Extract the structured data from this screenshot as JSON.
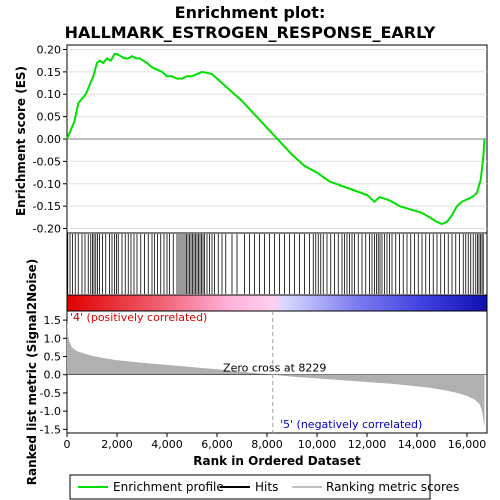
{
  "chart_data": {
    "type": "line",
    "title_line1": "Enrichment plot:",
    "title_line2": "HALLMARK_ESTROGEN_RESPONSE_EARLY",
    "es_panel": {
      "ylabel": "Enrichment score (ES)",
      "ylim": [
        -0.21,
        0.21
      ],
      "yticks": [
        "0.20",
        "0.15",
        "0.10",
        "0.05",
        "0.00",
        "-0.05",
        "-0.10",
        "-0.15",
        "-0.20"
      ],
      "ytick_values": [
        0.2,
        0.15,
        0.1,
        0.05,
        0.0,
        -0.05,
        -0.1,
        -0.15,
        -0.2
      ],
      "series_name": "Enrichment profile",
      "color": "#00e000",
      "x": [
        0,
        150,
        300,
        450,
        600,
        750,
        900,
        1050,
        1200,
        1300,
        1450,
        1600,
        1750,
        1900,
        2000,
        2150,
        2300,
        2450,
        2600,
        2750,
        2900,
        3050,
        3200,
        3400,
        3600,
        3800,
        4000,
        4200,
        4400,
        4600,
        4800,
        5000,
        5200,
        5400,
        5600,
        5800,
        6000,
        6500,
        7000,
        7500,
        8000,
        8500,
        9000,
        9500,
        10000,
        10500,
        11000,
        11500,
        12000,
        12300,
        12500,
        12800,
        13000,
        13300,
        13600,
        13900,
        14200,
        14500,
        14800,
        15000,
        15200,
        15400,
        15600,
        15800,
        16000,
        16200,
        16400,
        16550,
        16650,
        16700
      ],
      "y": [
        0.0,
        0.02,
        0.04,
        0.08,
        0.09,
        0.1,
        0.12,
        0.14,
        0.17,
        0.175,
        0.17,
        0.18,
        0.175,
        0.19,
        0.19,
        0.185,
        0.18,
        0.18,
        0.185,
        0.18,
        0.18,
        0.175,
        0.17,
        0.16,
        0.155,
        0.15,
        0.14,
        0.14,
        0.135,
        0.135,
        0.14,
        0.14,
        0.145,
        0.15,
        0.148,
        0.145,
        0.135,
        0.11,
        0.085,
        0.055,
        0.025,
        -0.005,
        -0.035,
        -0.06,
        -0.075,
        -0.095,
        -0.105,
        -0.115,
        -0.125,
        -0.14,
        -0.13,
        -0.135,
        -0.14,
        -0.15,
        -0.155,
        -0.16,
        -0.165,
        -0.175,
        -0.185,
        -0.19,
        -0.185,
        -0.17,
        -0.15,
        -0.14,
        -0.135,
        -0.13,
        -0.12,
        -0.09,
        -0.04,
        0.0
      ]
    },
    "hits_panel": {
      "legend_name": "Hits",
      "hit_positions": [
        30,
        120,
        220,
        330,
        450,
        600,
        720,
        850,
        950,
        1020,
        1080,
        1150,
        1220,
        1300,
        1420,
        1550,
        1700,
        1800,
        1900,
        1980,
        2050,
        2200,
        2330,
        2450,
        2560,
        2680,
        2800,
        2950,
        3100,
        3250,
        3400,
        3500,
        3620,
        3750,
        3880,
        4000,
        4100,
        4250,
        4400,
        4480,
        4560,
        4640,
        4720,
        4780,
        4840,
        4900,
        4960,
        5020,
        5080,
        5140,
        5200,
        5260,
        5320,
        5380,
        5440,
        5500,
        5600,
        5700,
        5800,
        5900,
        6050,
        6200,
        6350,
        6600,
        6800,
        7100,
        7300,
        7500,
        7700,
        7900,
        8100,
        8300,
        8500,
        8700,
        8900,
        9100,
        9300,
        9500,
        9700,
        9850,
        9950,
        10050,
        10150,
        10250,
        10400,
        10550,
        10700,
        10850,
        11000,
        11100,
        11200,
        11300,
        11400,
        11500,
        11650,
        11800,
        11950,
        12100,
        12200,
        12300,
        12380,
        12450,
        12520,
        12600,
        12700,
        12800,
        12900,
        13000,
        13150,
        13300,
        13450,
        13600,
        13750,
        13900,
        14050,
        14200,
        14350,
        14500,
        14650,
        14800,
        14950,
        15100,
        15250,
        15400,
        15550,
        15700,
        15850,
        15950,
        16050,
        16150,
        16250,
        16350,
        16420,
        16480,
        16540,
        16600,
        16650
      ]
    },
    "metric_panel": {
      "ylabel": "Ranked list metric (Signal2Noise)",
      "ylim": [
        -1.6,
        1.75
      ],
      "yticks": [
        "1.5",
        "1.0",
        "0.5",
        "0.0",
        "-0.5",
        "-1.0",
        "-1.5"
      ],
      "ytick_values": [
        1.5,
        1.0,
        0.5,
        0.0,
        -0.5,
        -1.0,
        -1.5
      ],
      "legend_name": "Ranking metric scores",
      "zero_cross_label": "Zero cross at 8229",
      "zero_cross_x": 8229,
      "pos_label": "'4' (positively correlated)",
      "neg_label": "'5' (negatively correlated)",
      "pos_color": "#e00000",
      "neg_color": "#0000c0",
      "x": [
        0,
        50,
        100,
        200,
        400,
        700,
        1000,
        1500,
        2000,
        3000,
        4000,
        5000,
        6000,
        7000,
        8229,
        9000,
        10000,
        11000,
        12000,
        13000,
        14000,
        14500,
        15000,
        15500,
        16000,
        16300,
        16500,
        16600,
        16700
      ],
      "y": [
        1.5,
        1.05,
        0.9,
        0.75,
        0.65,
        0.58,
        0.52,
        0.45,
        0.4,
        0.33,
        0.27,
        0.21,
        0.15,
        0.08,
        0.0,
        -0.05,
        -0.1,
        -0.15,
        -0.2,
        -0.25,
        -0.32,
        -0.36,
        -0.41,
        -0.48,
        -0.58,
        -0.68,
        -0.8,
        -1.0,
        -1.45
      ]
    },
    "xlabel": "Rank in Ordered Dataset",
    "xlim": [
      0,
      16800
    ],
    "xticks": [
      "0",
      "2,000",
      "4,000",
      "6,000",
      "8,000",
      "10,000",
      "12,000",
      "14,000",
      "16,000"
    ],
    "xtick_values": [
      0,
      2000,
      4000,
      6000,
      8000,
      10000,
      12000,
      14000,
      16000
    ]
  }
}
